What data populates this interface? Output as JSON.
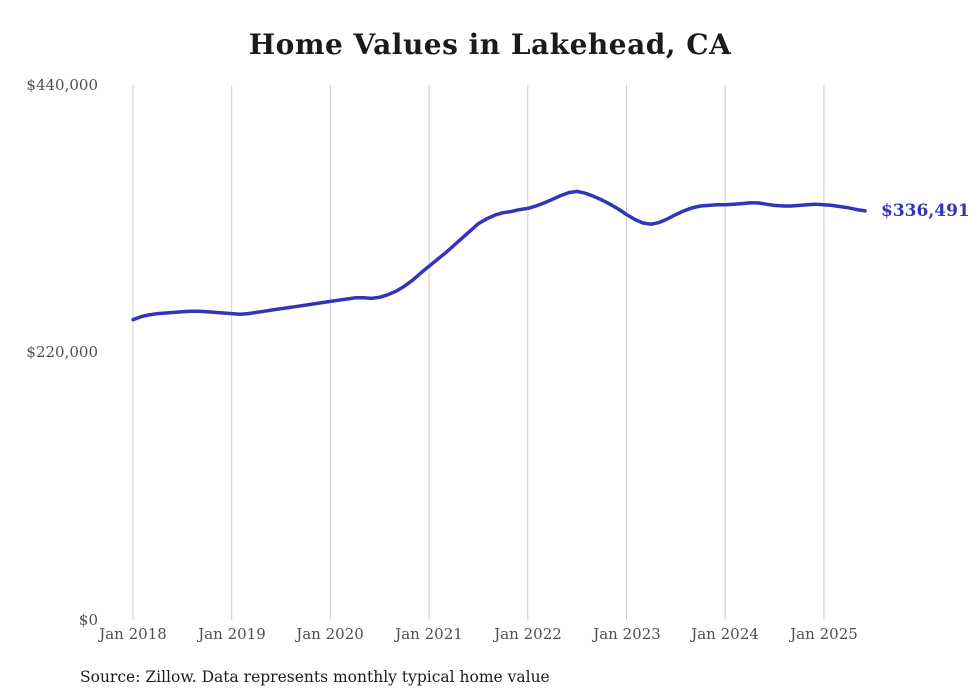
{
  "chart_data": {
    "type": "line",
    "title": "Home Values in Lakehead, CA",
    "xlabel": "",
    "ylabel": "",
    "ylim": [
      0,
      440000
    ],
    "grid": "vertical-only",
    "legend": "none",
    "x_unit": "month",
    "x_start": "Jan 2018",
    "x_end": "Jun 2025",
    "x_tick_labels": [
      "Jan 2018",
      "Jan 2019",
      "Jan 2020",
      "Jan 2021",
      "Jan 2022",
      "Jan 2023",
      "Jan 2024",
      "Jan 2025"
    ],
    "y_tick_labels": [
      "$440,000",
      "$220,000",
      "$0"
    ],
    "line_color": "#3434b8",
    "end_label": "$336,491",
    "end_value": 336491,
    "source_note": "Source: Zillow. Data represents monthly typical home value",
    "values": [
      247000,
      249500,
      251000,
      252000,
      252500,
      253000,
      253500,
      254000,
      254000,
      253500,
      253000,
      252500,
      252000,
      251500,
      252000,
      253000,
      254000,
      255000,
      256000,
      257000,
      258000,
      259000,
      260000,
      261000,
      262000,
      263000,
      264000,
      265000,
      265000,
      264500,
      265500,
      267500,
      270500,
      274500,
      279500,
      285500,
      291000,
      296500,
      302000,
      308000,
      314000,
      320000,
      326000,
      330000,
      333000,
      335000,
      336000,
      337500,
      338500,
      340500,
      343000,
      346000,
      349000,
      351500,
      352500,
      351000,
      348500,
      345500,
      342000,
      338000,
      333500,
      329500,
      326500,
      325500,
      327000,
      330000,
      333500,
      336500,
      339000,
      340500,
      341000,
      341500,
      341500,
      342000,
      342500,
      343000,
      343000,
      342000,
      341000,
      340500,
      340500,
      341000,
      341500,
      342000,
      341500,
      341000,
      340000,
      339000,
      337500,
      336491
    ]
  }
}
